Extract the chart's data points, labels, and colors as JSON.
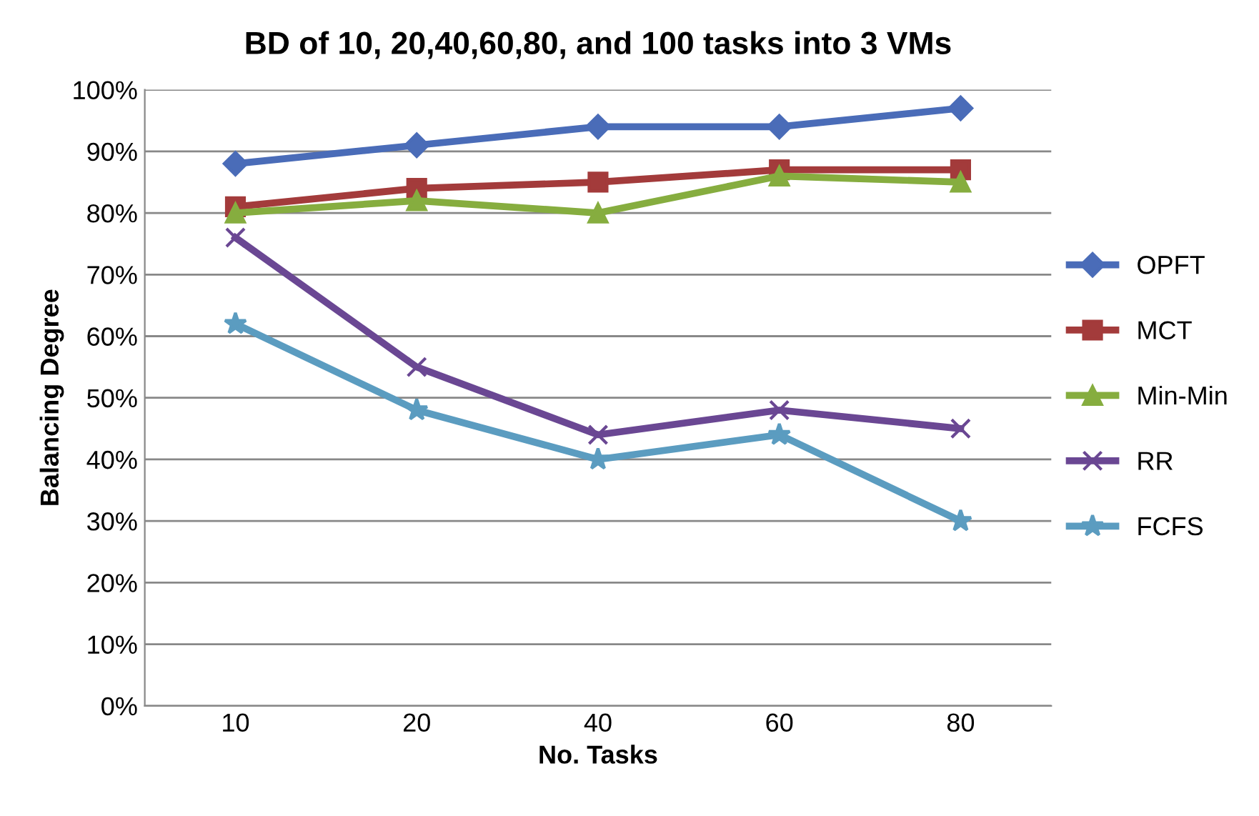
{
  "chart_data": {
    "type": "line",
    "title": "BD of 10, 20,40,60,80, and 100 tasks into 3 VMs",
    "xlabel": "No. Tasks",
    "ylabel": "Balancing Degree",
    "categories": [
      "10",
      "20",
      "40",
      "60",
      "80"
    ],
    "series": [
      {
        "name": "OPFT",
        "color": "#4a6cb8",
        "marker": "diamond",
        "values": [
          88,
          91,
          94,
          94,
          97
        ]
      },
      {
        "name": "MCT",
        "color": "#a33b3b",
        "marker": "square",
        "values": [
          81,
          84,
          85,
          87,
          87
        ]
      },
      {
        "name": "Min-Min",
        "color": "#86ad3f",
        "marker": "triangle",
        "values": [
          80,
          82,
          80,
          86,
          85
        ]
      },
      {
        "name": "RR",
        "color": "#6a4793",
        "marker": "cross",
        "values": [
          76,
          55,
          44,
          48,
          45
        ]
      },
      {
        "name": "FCFS",
        "color": "#5b9cc0",
        "marker": "star",
        "values": [
          62,
          48,
          40,
          44,
          30
        ]
      }
    ],
    "ylim": [
      0,
      100
    ],
    "yticks": [
      {
        "value": 0,
        "label": "0%"
      },
      {
        "value": 10,
        "label": "10%"
      },
      {
        "value": 20,
        "label": "20%"
      },
      {
        "value": 30,
        "label": "30%"
      },
      {
        "value": 40,
        "label": "40%"
      },
      {
        "value": 50,
        "label": "50%"
      },
      {
        "value": 60,
        "label": "60%"
      },
      {
        "value": 70,
        "label": "70%"
      },
      {
        "value": 80,
        "label": "80%"
      },
      {
        "value": 90,
        "label": "90%"
      },
      {
        "value": 100,
        "label": "100%"
      }
    ],
    "grid": "y",
    "legend": "right",
    "line_style": "solid"
  }
}
